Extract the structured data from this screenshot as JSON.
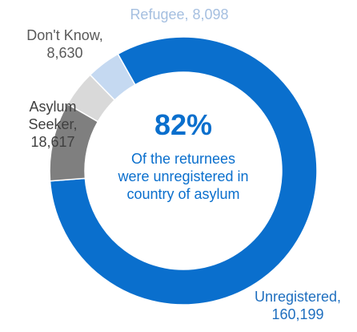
{
  "chart_data": {
    "type": "pie",
    "variant": "donut",
    "categories": [
      "Unregistered",
      "Asylum Seeker",
      "Don't Know",
      "Refugee"
    ],
    "values": [
      160199,
      18617,
      8630,
      8098
    ],
    "colors": [
      "#0a6fcd",
      "#7f7f7f",
      "#d9d9d9",
      "#c5d9f1"
    ],
    "data_labels": [
      [
        "Unregistered,",
        "160,199"
      ],
      [
        "Asylum",
        "Seeker,",
        "18,617"
      ],
      [
        "Don't Know,",
        "8,630"
      ],
      [
        "Refugee, 8,098"
      ]
    ],
    "label_colors": [
      "#1f6fbf",
      "#404040",
      "#595959",
      "#a5bfe0"
    ],
    "center": {
      "value": "82%",
      "lines": [
        "Of the returnees",
        "were unregistered in",
        "country of asylum"
      ],
      "color": "#0a6fcd"
    },
    "legend": "none"
  }
}
